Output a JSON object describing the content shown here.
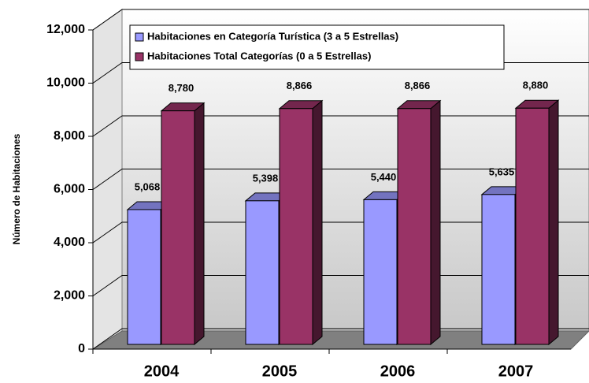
{
  "chart_data": {
    "type": "bar3d",
    "y_axis_label": "Número de Habitaciones",
    "categories": [
      "2004",
      "2005",
      "2006",
      "2007"
    ],
    "series": [
      {
        "name": "Habitaciones en Categoría Turística (3 a 5 Estrellas)",
        "color": "#9999ff",
        "values": [
          5068,
          5398,
          5440,
          5635
        ],
        "value_labels": [
          "5,068",
          "5,398",
          "5,440",
          "5,635"
        ]
      },
      {
        "name": "Habitaciones Total Categorías (0 a 5 Estrellas)",
        "color": "#993366",
        "values": [
          8780,
          8866,
          8866,
          8880
        ],
        "value_labels": [
          "8,780",
          "8,866",
          "8,866",
          "8,880"
        ]
      }
    ],
    "ylim": [
      0,
      12000
    ],
    "yticks": [
      0,
      {
        "value": 2000,
        "label": "2,000"
      },
      {
        "value": 4000,
        "label": "4,000"
      },
      {
        "value": 6000,
        "label": "6,000"
      },
      {
        "value": 8000,
        "label": "8,000"
      },
      {
        "value": 10000,
        "label": "10,000"
      },
      {
        "value": 12000,
        "label": "12,000"
      }
    ],
    "grid": true,
    "legend": "top"
  }
}
